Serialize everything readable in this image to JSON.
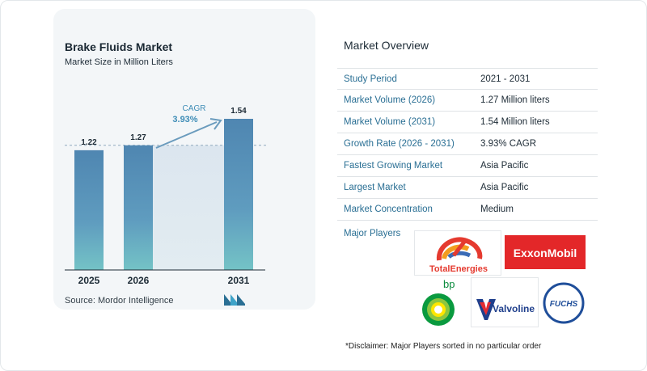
{
  "chart_data": {
    "type": "bar",
    "title": "Brake Fluids Market",
    "subtitle": "Market Size in Million Liters",
    "categories": [
      "2025",
      "2026",
      "2031"
    ],
    "values": [
      1.22,
      1.27,
      1.54
    ],
    "value_labels": [
      "1.22",
      "1.27",
      "1.54"
    ],
    "ylim": [
      0,
      1.6
    ],
    "grid": false,
    "annotation": {
      "label": "CAGR",
      "value": "3.93%"
    },
    "bar_color": "#5b8fb5",
    "bar_color_highlight": "#4a82ad",
    "shade_color": "#dde7f0"
  },
  "source": "Source:  Mordor Intelligence",
  "overview": {
    "title": "Market Overview",
    "rows": [
      {
        "label": "Study Period",
        "value": "2021 - 2031"
      },
      {
        "label": "Market Volume (2026)",
        "value": "1.27 Million liters"
      },
      {
        "label": "Market Volume (2031)",
        "value": "1.54 Million liters"
      },
      {
        "label": "Growth Rate (2026 - 2031)",
        "value": "3.93% CAGR"
      },
      {
        "label": "Fastest Growing Market",
        "value": "Asia Pacific"
      },
      {
        "label": "Largest Market",
        "value": "Asia Pacific"
      },
      {
        "label": "Market Concentration",
        "value": "Medium"
      }
    ],
    "players_label": "Major Players",
    "players": [
      "TotalEnergies",
      "ExxonMobil",
      "bp",
      "Valvoline",
      "FUCHS"
    ],
    "disclaimer": "*Disclaimer: Major Players sorted in no particular order"
  },
  "colors": {
    "accent": "#2a6f94",
    "exxon_red": "#e32729",
    "valvoline_blue": "#1f3f8c",
    "valvoline_red": "#e22d33"
  }
}
